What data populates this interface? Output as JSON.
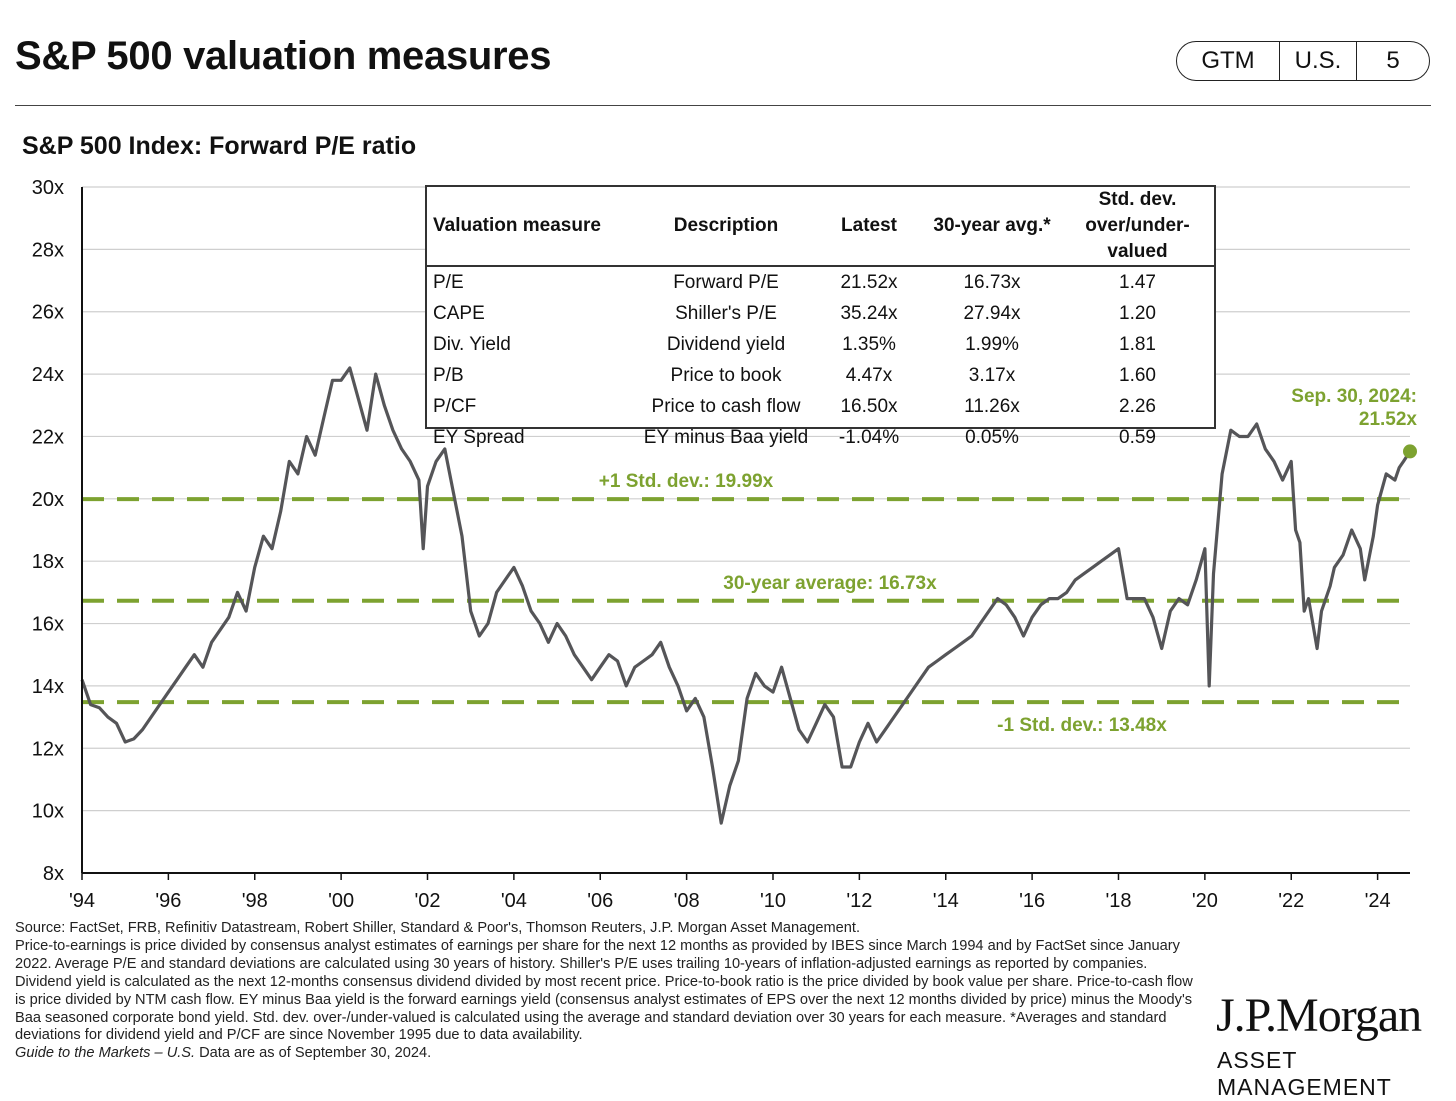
{
  "header": {
    "title": "S&P 500 valuation measures",
    "badge": [
      "GTM",
      "U.S.",
      "5"
    ]
  },
  "colors": {
    "accent": "#7da230",
    "line": "#555558",
    "grid": "#cfcfcf"
  },
  "chart_data": {
    "type": "line",
    "title": "S&P 500 Index: Forward P/E ratio",
    "x_ticks": [
      "'94",
      "'96",
      "'98",
      "'00",
      "'02",
      "'04",
      "'06",
      "'08",
      "'10",
      "'12",
      "'14",
      "'16",
      "'18",
      "'20",
      "'22",
      "'24"
    ],
    "y_ticks": [
      "8x",
      "10x",
      "12x",
      "14x",
      "16x",
      "18x",
      "20x",
      "22x",
      "24x",
      "26x",
      "28x",
      "30x"
    ],
    "xlim": [
      1994,
      2024.75
    ],
    "ylim": [
      8,
      30
    ],
    "series": [
      {
        "name": "Forward P/E",
        "points": [
          [
            1994.0,
            14.2
          ],
          [
            1994.2,
            13.4
          ],
          [
            1994.4,
            13.3
          ],
          [
            1994.6,
            13.0
          ],
          [
            1994.8,
            12.8
          ],
          [
            1995.0,
            12.2
          ],
          [
            1995.2,
            12.3
          ],
          [
            1995.4,
            12.6
          ],
          [
            1995.6,
            13.0
          ],
          [
            1995.8,
            13.4
          ],
          [
            1996.0,
            13.8
          ],
          [
            1996.2,
            14.2
          ],
          [
            1996.4,
            14.6
          ],
          [
            1996.6,
            15.0
          ],
          [
            1996.8,
            14.6
          ],
          [
            1997.0,
            15.4
          ],
          [
            1997.2,
            15.8
          ],
          [
            1997.4,
            16.2
          ],
          [
            1997.6,
            17.0
          ],
          [
            1997.8,
            16.4
          ],
          [
            1998.0,
            17.8
          ],
          [
            1998.2,
            18.8
          ],
          [
            1998.4,
            18.4
          ],
          [
            1998.6,
            19.6
          ],
          [
            1998.8,
            21.2
          ],
          [
            1999.0,
            20.8
          ],
          [
            1999.2,
            22.0
          ],
          [
            1999.4,
            21.4
          ],
          [
            1999.6,
            22.6
          ],
          [
            1999.8,
            23.8
          ],
          [
            2000.0,
            23.8
          ],
          [
            2000.2,
            24.2
          ],
          [
            2000.4,
            23.2
          ],
          [
            2000.6,
            22.2
          ],
          [
            2000.8,
            24.0
          ],
          [
            2001.0,
            23.0
          ],
          [
            2001.2,
            22.2
          ],
          [
            2001.4,
            21.6
          ],
          [
            2001.6,
            21.2
          ],
          [
            2001.8,
            20.6
          ],
          [
            2001.9,
            18.4
          ],
          [
            2002.0,
            20.4
          ],
          [
            2002.2,
            21.2
          ],
          [
            2002.4,
            21.6
          ],
          [
            2002.6,
            20.2
          ],
          [
            2002.8,
            18.8
          ],
          [
            2003.0,
            16.4
          ],
          [
            2003.2,
            15.6
          ],
          [
            2003.4,
            16.0
          ],
          [
            2003.6,
            17.0
          ],
          [
            2003.8,
            17.4
          ],
          [
            2004.0,
            17.8
          ],
          [
            2004.2,
            17.2
          ],
          [
            2004.4,
            16.4
          ],
          [
            2004.6,
            16.0
          ],
          [
            2004.8,
            15.4
          ],
          [
            2005.0,
            16.0
          ],
          [
            2005.2,
            15.6
          ],
          [
            2005.4,
            15.0
          ],
          [
            2005.6,
            14.6
          ],
          [
            2005.8,
            14.2
          ],
          [
            2006.0,
            14.6
          ],
          [
            2006.2,
            15.0
          ],
          [
            2006.4,
            14.8
          ],
          [
            2006.6,
            14.0
          ],
          [
            2006.8,
            14.6
          ],
          [
            2007.0,
            14.8
          ],
          [
            2007.2,
            15.0
          ],
          [
            2007.4,
            15.4
          ],
          [
            2007.6,
            14.6
          ],
          [
            2007.8,
            14.0
          ],
          [
            2008.0,
            13.2
          ],
          [
            2008.2,
            13.6
          ],
          [
            2008.4,
            13.0
          ],
          [
            2008.6,
            11.4
          ],
          [
            2008.8,
            9.6
          ],
          [
            2009.0,
            10.8
          ],
          [
            2009.2,
            11.6
          ],
          [
            2009.4,
            13.6
          ],
          [
            2009.6,
            14.4
          ],
          [
            2009.8,
            14.0
          ],
          [
            2010.0,
            13.8
          ],
          [
            2010.2,
            14.6
          ],
          [
            2010.4,
            13.6
          ],
          [
            2010.6,
            12.6
          ],
          [
            2010.8,
            12.2
          ],
          [
            2011.0,
            12.8
          ],
          [
            2011.2,
            13.4
          ],
          [
            2011.4,
            13.0
          ],
          [
            2011.6,
            11.4
          ],
          [
            2011.8,
            11.4
          ],
          [
            2012.0,
            12.2
          ],
          [
            2012.2,
            12.8
          ],
          [
            2012.4,
            12.2
          ],
          [
            2012.6,
            12.6
          ],
          [
            2012.8,
            13.0
          ],
          [
            2013.0,
            13.4
          ],
          [
            2013.2,
            13.8
          ],
          [
            2013.4,
            14.2
          ],
          [
            2013.6,
            14.6
          ],
          [
            2013.8,
            14.8
          ],
          [
            2014.0,
            15.0
          ],
          [
            2014.2,
            15.2
          ],
          [
            2014.4,
            15.4
          ],
          [
            2014.6,
            15.6
          ],
          [
            2014.8,
            16.0
          ],
          [
            2015.0,
            16.4
          ],
          [
            2015.2,
            16.8
          ],
          [
            2015.4,
            16.6
          ],
          [
            2015.6,
            16.2
          ],
          [
            2015.8,
            15.6
          ],
          [
            2016.0,
            16.2
          ],
          [
            2016.2,
            16.6
          ],
          [
            2016.4,
            16.8
          ],
          [
            2016.6,
            16.8
          ],
          [
            2016.8,
            17.0
          ],
          [
            2017.0,
            17.4
          ],
          [
            2017.2,
            17.6
          ],
          [
            2017.4,
            17.8
          ],
          [
            2017.6,
            18.0
          ],
          [
            2017.8,
            18.2
          ],
          [
            2018.0,
            18.4
          ],
          [
            2018.2,
            16.8
          ],
          [
            2018.4,
            16.8
          ],
          [
            2018.6,
            16.8
          ],
          [
            2018.8,
            16.2
          ],
          [
            2019.0,
            15.2
          ],
          [
            2019.2,
            16.4
          ],
          [
            2019.4,
            16.8
          ],
          [
            2019.6,
            16.6
          ],
          [
            2019.8,
            17.4
          ],
          [
            2020.0,
            18.4
          ],
          [
            2020.1,
            14.0
          ],
          [
            2020.2,
            17.6
          ],
          [
            2020.4,
            20.8
          ],
          [
            2020.6,
            22.2
          ],
          [
            2020.8,
            22.0
          ],
          [
            2021.0,
            22.0
          ],
          [
            2021.2,
            22.4
          ],
          [
            2021.4,
            21.6
          ],
          [
            2021.6,
            21.2
          ],
          [
            2021.8,
            20.6
          ],
          [
            2022.0,
            21.2
          ],
          [
            2022.1,
            19.0
          ],
          [
            2022.2,
            18.6
          ],
          [
            2022.3,
            16.4
          ],
          [
            2022.4,
            16.8
          ],
          [
            2022.5,
            16.0
          ],
          [
            2022.6,
            15.2
          ],
          [
            2022.7,
            16.4
          ],
          [
            2022.9,
            17.2
          ],
          [
            2023.0,
            17.8
          ],
          [
            2023.2,
            18.2
          ],
          [
            2023.4,
            19.0
          ],
          [
            2023.6,
            18.4
          ],
          [
            2023.7,
            17.4
          ],
          [
            2023.9,
            18.8
          ],
          [
            2024.0,
            19.8
          ],
          [
            2024.2,
            20.8
          ],
          [
            2024.4,
            20.6
          ],
          [
            2024.5,
            21.0
          ],
          [
            2024.6,
            21.2
          ],
          [
            2024.75,
            21.52
          ]
        ]
      }
    ],
    "reference_lines": [
      {
        "name": "+1 Std. dev.",
        "value": 19.99,
        "label": "+1 Std. dev.: 19.99x"
      },
      {
        "name": "30-year average",
        "value": 16.73,
        "label": "30-year average: 16.73x"
      },
      {
        "name": "-1 Std. dev.",
        "value": 13.48,
        "label": "-1 Std. dev.: 13.48x"
      }
    ],
    "latest_point": {
      "x": 2024.75,
      "y": 21.52,
      "label_line1": "Sep. 30, 2024:",
      "label_line2": "21.52x"
    }
  },
  "valuation_table": {
    "headers": [
      "Valuation measure",
      "Description",
      "Latest",
      "30-year avg.*",
      "Std. dev.",
      "over/under-valued"
    ],
    "rows": [
      [
        "P/E",
        "Forward P/E",
        "21.52x",
        "16.73x",
        "1.47"
      ],
      [
        "CAPE",
        "Shiller's P/E",
        "35.24x",
        "27.94x",
        "1.20"
      ],
      [
        "Div. Yield",
        "Dividend yield",
        "1.35%",
        "1.99%",
        "1.81"
      ],
      [
        "P/B",
        "Price to book",
        "4.47x",
        "3.17x",
        "1.60"
      ],
      [
        "P/CF",
        "Price to cash flow",
        "16.50x",
        "11.26x",
        "2.26"
      ],
      [
        "EY Spread",
        "EY minus Baa yield",
        "-1.04%",
        "0.05%",
        "0.59"
      ]
    ]
  },
  "footnotes": {
    "source": "Source: FactSet, FRB, Refinitiv Datastream, Robert Shiller, Standard & Poor's, Thomson Reuters, J.P. Morgan Asset Management.",
    "methodology": "Price-to-earnings is price divided by consensus analyst estimates of earnings per share for the next 12 months as provided by IBES since March 1994 and by FactSet since January 2022. Average P/E and standard deviations are calculated using 30 years of history. Shiller's P/E uses trailing 10-years of inflation-adjusted earnings as reported by companies. Dividend yield is calculated as the next 12-months consensus dividend divided by most recent price. Price-to-book ratio is the price divided by book value per share. Price-to-cash flow is price divided by NTM cash flow. EY minus Baa yield is the forward earnings yield (consensus analyst estimates of EPS over the next 12 months divided by price) minus the Moody's Baa seasoned corporate bond yield. Std. dev. over-/under-valued is calculated using the average and standard deviation over 30 years for each measure. *Averages and standard deviations for dividend yield and P/CF are since November 1995 due to data availability.",
    "guide_title": "Guide to the Markets – U.S.",
    "data_as_of": "Data are as of September 30, 2024."
  },
  "logo": {
    "name": "J.P.Morgan",
    "sub": "ASSET MANAGEMENT"
  }
}
